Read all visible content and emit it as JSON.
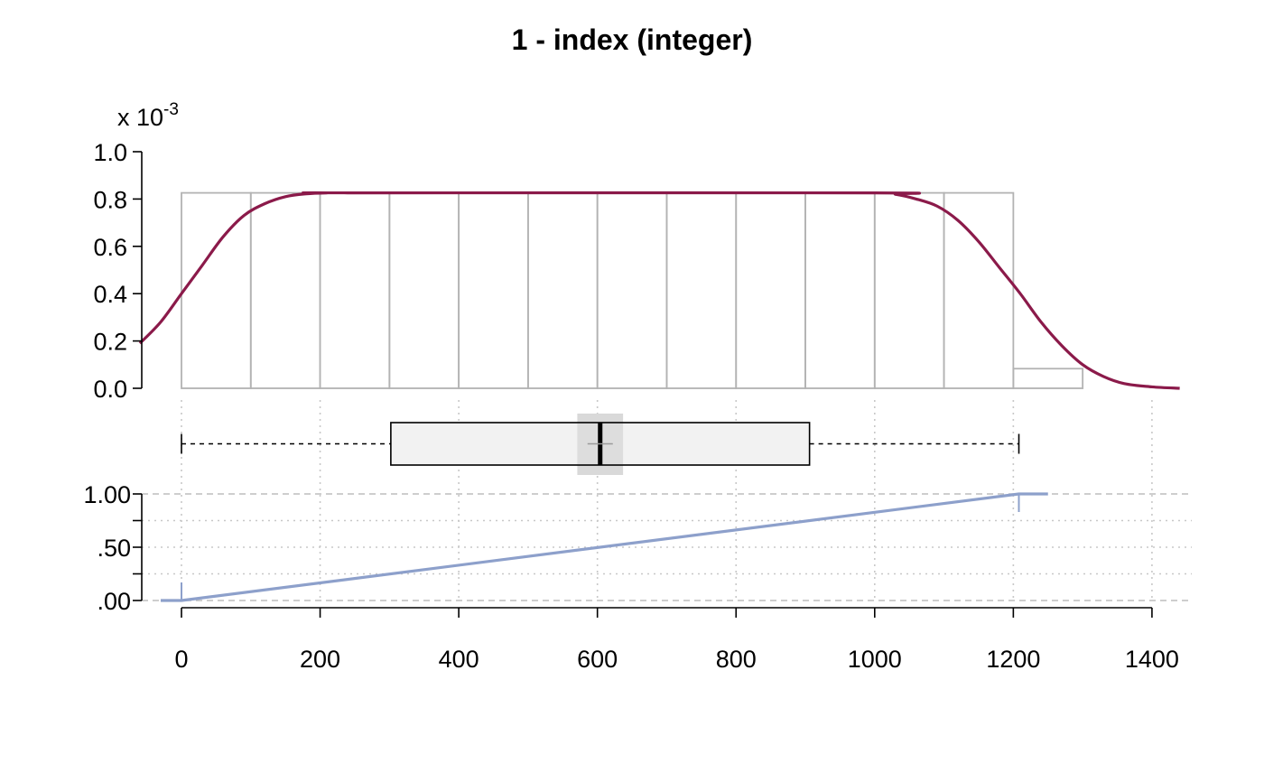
{
  "chart_data": {
    "type": "histogram-boxplot-ecdf",
    "title": "1 - index (integer)",
    "colors": {
      "histogram_outline": "#b3b3b3",
      "density_line": "#8b1a4a",
      "ecdf_line": "#8da0cb",
      "box_fill": "#f2f2f2",
      "mean_ci_band": "#d9d9d9",
      "grid": "#c8c8c8"
    },
    "x_axis": {
      "range": [
        -60,
        1440
      ],
      "ticks": [
        0,
        200,
        400,
        600,
        800,
        1000,
        1200,
        1400
      ],
      "tick_labels": [
        "0",
        "200",
        "400",
        "600",
        "800",
        "1000",
        "1200",
        "1400"
      ]
    },
    "histogram": {
      "y_multiplier_label": "x 10",
      "y_multiplier_exponent": "-3",
      "ylim": [
        0,
        1.0
      ],
      "y_ticks": [
        0.0,
        0.2,
        0.4,
        0.6,
        0.8,
        1.0
      ],
      "y_tick_labels": [
        "0.0",
        "0.2",
        "0.4",
        "0.6",
        "0.8",
        "1.0"
      ],
      "bin_edges": [
        0,
        100,
        200,
        300,
        400,
        500,
        600,
        700,
        800,
        900,
        1000,
        1100,
        1200,
        1300
      ],
      "densities": [
        0.826,
        0.826,
        0.826,
        0.826,
        0.826,
        0.826,
        0.826,
        0.826,
        0.826,
        0.826,
        0.826,
        0.826,
        0.083
      ]
    },
    "density": {
      "x": [
        -60,
        -30,
        0,
        30,
        60,
        90,
        120,
        150,
        180,
        210,
        240,
        1000,
        1030,
        1060,
        1090,
        1120,
        1150,
        1180,
        1210,
        1240,
        1270,
        1300,
        1330,
        1360,
        1400,
        1440
      ],
      "y": [
        0.19,
        0.28,
        0.4,
        0.52,
        0.64,
        0.73,
        0.78,
        0.81,
        0.822,
        0.826,
        0.826,
        0.826,
        0.82,
        0.8,
        0.77,
        0.71,
        0.62,
        0.51,
        0.4,
        0.28,
        0.18,
        0.1,
        0.05,
        0.02,
        0.006,
        0.0
      ]
    },
    "boxplot": {
      "min": 0,
      "q1": 302,
      "median": 604,
      "q3": 906,
      "max": 1208,
      "mean": 604,
      "mean_ci": [
        584,
        624
      ]
    },
    "ecdf": {
      "ylim": [
        0,
        1
      ],
      "y_ticks": [
        0,
        0.25,
        0.5,
        0.75,
        1
      ],
      "y_tick_labels": [
        ".00",
        "",
        ".50",
        "",
        "1.00"
      ],
      "points": [
        [
          -30,
          0
        ],
        [
          0,
          0
        ],
        [
          1208,
          1
        ],
        [
          1250,
          1
        ]
      ]
    }
  }
}
